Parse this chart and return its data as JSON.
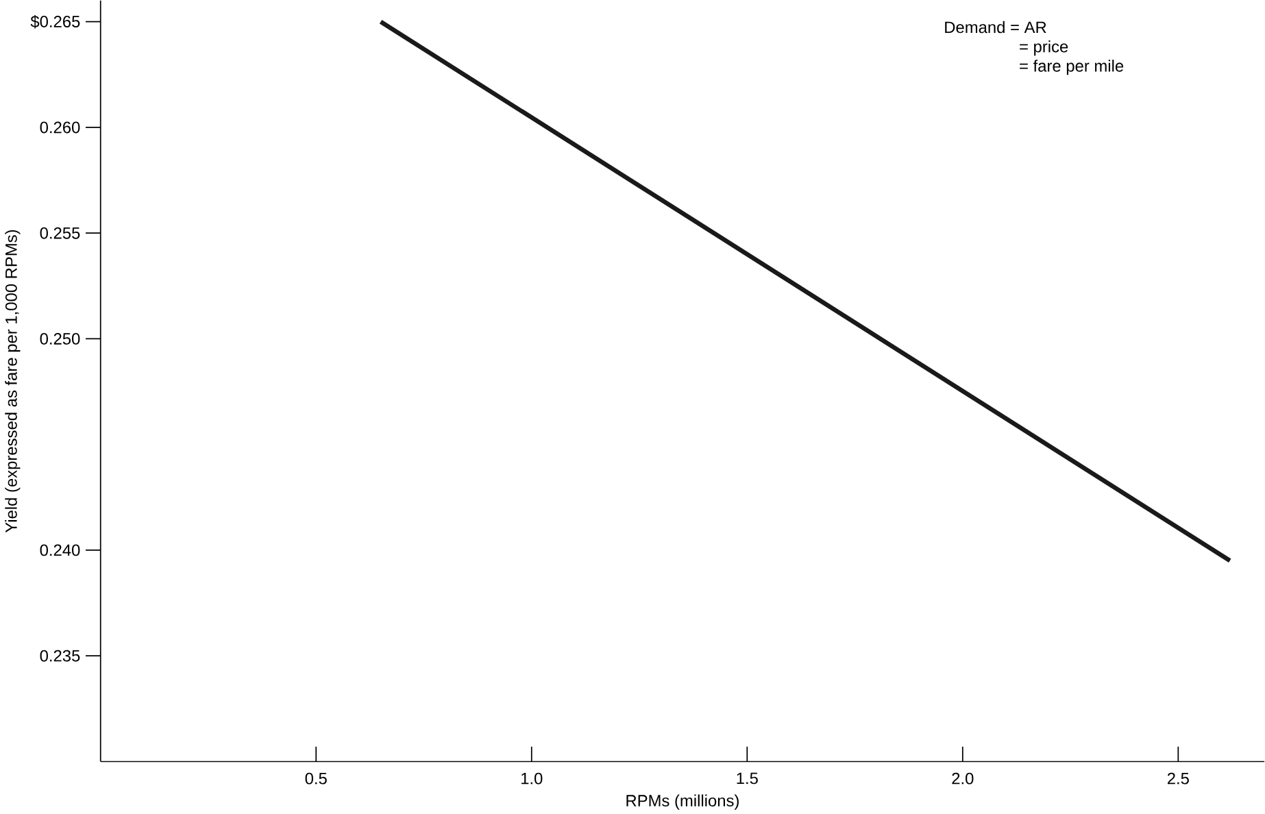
{
  "chart_data": {
    "type": "line",
    "xlabel": "RPMs (millions)",
    "ylabel": "Yield (expressed as fare per 1,000 RPMs)",
    "x": [
      0.65,
      2.62
    ],
    "series": [
      {
        "color": "#1a1a1a",
        "values": [
          0.265,
          0.2395
        ]
      }
    ],
    "xlim": [
      0,
      2.7
    ],
    "ylim": [
      0.23,
      0.266
    ],
    "xticks": [
      {
        "value": 0.5,
        "label": "0.5"
      },
      {
        "value": 1.0,
        "label": "1.0"
      },
      {
        "value": 1.5,
        "label": "1.5"
      },
      {
        "value": 2.0,
        "label": "2.0"
      },
      {
        "value": 2.5,
        "label": "2.5"
      }
    ],
    "yticks": [
      {
        "value": 0.235,
        "label": "0.235"
      },
      {
        "value": 0.24,
        "label": "0.240"
      },
      {
        "value": 0.25,
        "label": "0.250"
      },
      {
        "value": 0.255,
        "label": "0.255"
      },
      {
        "value": 0.26,
        "label": "0.260"
      },
      {
        "value": 0.265,
        "label": "$0.265"
      }
    ],
    "annotations": [
      "Demand = AR",
      "= price",
      "= fare per mile"
    ]
  }
}
